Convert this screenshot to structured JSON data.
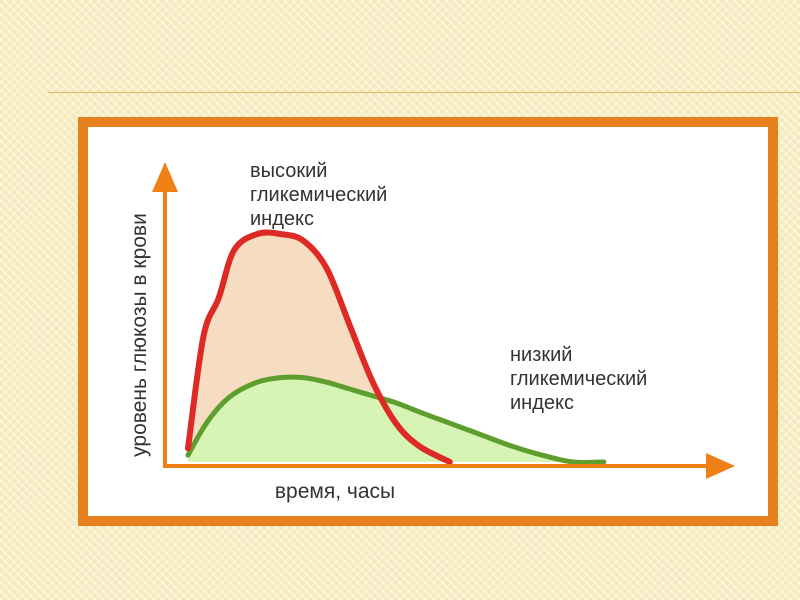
{
  "colors": {
    "frame": "#e7801f",
    "axis": "#f07f15",
    "high_line": "#dd2a26",
    "high_fill": "#f6dcc0",
    "low_line": "#5d9e2c",
    "low_fill": "#d6f5b4"
  },
  "chart_data": {
    "type": "area",
    "xlabel": "время, часы",
    "ylabel": "уровень глюкозы в крови",
    "x": [
      0,
      0.1,
      0.2,
      0.3,
      0.45,
      0.6,
      0.75,
      0.9,
      1.05,
      1.2,
      1.35,
      1.5,
      1.7,
      1.9,
      2.1,
      2.3,
      2.5,
      2.7,
      2.9,
      3.1,
      3.3,
      3.5
    ],
    "series": [
      {
        "name": "высокий гликемический индекс",
        "line_color": "#dd2a26",
        "fill_color": "#f6dcc0",
        "values": [
          0.06,
          0.55,
          0.72,
          0.93,
          1.0,
          1.0,
          0.97,
          0.85,
          0.6,
          0.35,
          0.17,
          0.07,
          0.0,
          null,
          null,
          null,
          null,
          null,
          null,
          null,
          null,
          null
        ]
      },
      {
        "name": "низкий гликемический индекс",
        "line_color": "#5d9e2c",
        "fill_color": "#d6f5b4",
        "values": [
          0.03,
          0.15,
          0.24,
          0.3,
          0.35,
          0.37,
          0.37,
          0.35,
          0.32,
          0.29,
          0.26,
          0.22,
          0.17,
          0.12,
          0.07,
          0.03,
          0.0,
          0.0,
          null,
          null,
          null,
          null
        ]
      }
    ],
    "series_labels": {
      "high": [
        "высокий",
        "гликемический",
        "индекс"
      ],
      "low": [
        "низкий",
        "гликемический",
        "индекс"
      ]
    },
    "grid": false,
    "legend": "none"
  }
}
